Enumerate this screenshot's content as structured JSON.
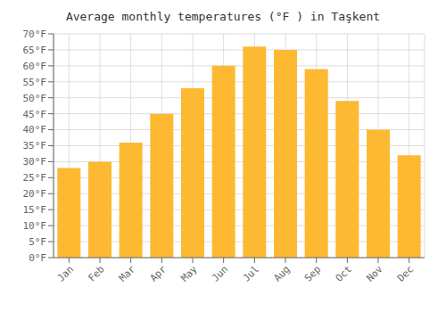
{
  "chart_data": {
    "type": "bar",
    "title": "Average monthly temperatures (°F ) in Taşkent",
    "categories": [
      "Jan",
      "Feb",
      "Mar",
      "Apr",
      "May",
      "Jun",
      "Jul",
      "Aug",
      "Sep",
      "Oct",
      "Nov",
      "Dec"
    ],
    "values": [
      28,
      30,
      36,
      45,
      53,
      60,
      66,
      65,
      59,
      49,
      40,
      32
    ],
    "color": "#FDB931",
    "ylim": [
      0,
      70
    ],
    "yticks": [
      {
        "value": 0,
        "label": "0°F"
      },
      {
        "value": 5,
        "label": "5°F"
      },
      {
        "value": 10,
        "label": "10°F"
      },
      {
        "value": 15,
        "label": "15°F"
      },
      {
        "value": 20,
        "label": "20°F"
      },
      {
        "value": 25,
        "label": "25°F"
      },
      {
        "value": 30,
        "label": "30°F"
      },
      {
        "value": 35,
        "label": "35°F"
      },
      {
        "value": 40,
        "label": "40°F"
      },
      {
        "value": 45,
        "label": "45°F"
      },
      {
        "value": 50,
        "label": "50°F"
      },
      {
        "value": 55,
        "label": "55°F"
      },
      {
        "value": 60,
        "label": "60°F"
      },
      {
        "value": 65,
        "label": "65°F"
      },
      {
        "value": 70,
        "label": "70°F"
      }
    ],
    "grid": true
  }
}
